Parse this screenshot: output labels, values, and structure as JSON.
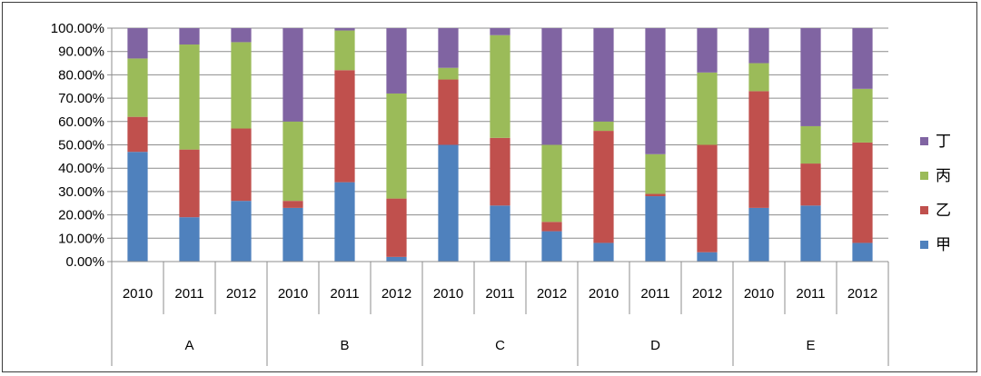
{
  "chart_data": {
    "type": "bar",
    "stacked": true,
    "percent": true,
    "groups": [
      {
        "label": "A",
        "years": [
          "2010",
          "2011",
          "2012"
        ]
      },
      {
        "label": "B",
        "years": [
          "2010",
          "2011",
          "2012"
        ]
      },
      {
        "label": "C",
        "years": [
          "2010",
          "2011",
          "2012"
        ]
      },
      {
        "label": "D",
        "years": [
          "2010",
          "2011",
          "2012"
        ]
      },
      {
        "label": "E",
        "years": [
          "2010",
          "2011",
          "2012"
        ]
      }
    ],
    "series": [
      {
        "name": "甲",
        "color": "#4F81BD",
        "values": [
          47,
          19,
          26,
          23,
          34,
          2,
          50,
          24,
          13,
          8,
          28,
          4,
          23,
          24,
          8
        ]
      },
      {
        "name": "乙",
        "color": "#C0504D",
        "values": [
          15,
          29,
          31,
          3,
          48,
          25,
          28,
          29,
          4,
          48,
          1,
          46,
          50,
          18,
          43
        ]
      },
      {
        "name": "丙",
        "color": "#9BBB59",
        "values": [
          25,
          45,
          37,
          34,
          17,
          45,
          5,
          44,
          33,
          4,
          17,
          31,
          12,
          16,
          23
        ]
      },
      {
        "name": "丁",
        "color": "#8064A2",
        "values": [
          13,
          7,
          6,
          40,
          1,
          28,
          17,
          3,
          50,
          40,
          54,
          19,
          15,
          42,
          26
        ]
      }
    ],
    "ylim": [
      0,
      100
    ],
    "yticks": [
      "0.00%",
      "10.00%",
      "20.00%",
      "30.00%",
      "40.00%",
      "50.00%",
      "60.00%",
      "70.00%",
      "80.00%",
      "90.00%",
      "100.00%"
    ],
    "legend_position": "right",
    "grid": true
  }
}
